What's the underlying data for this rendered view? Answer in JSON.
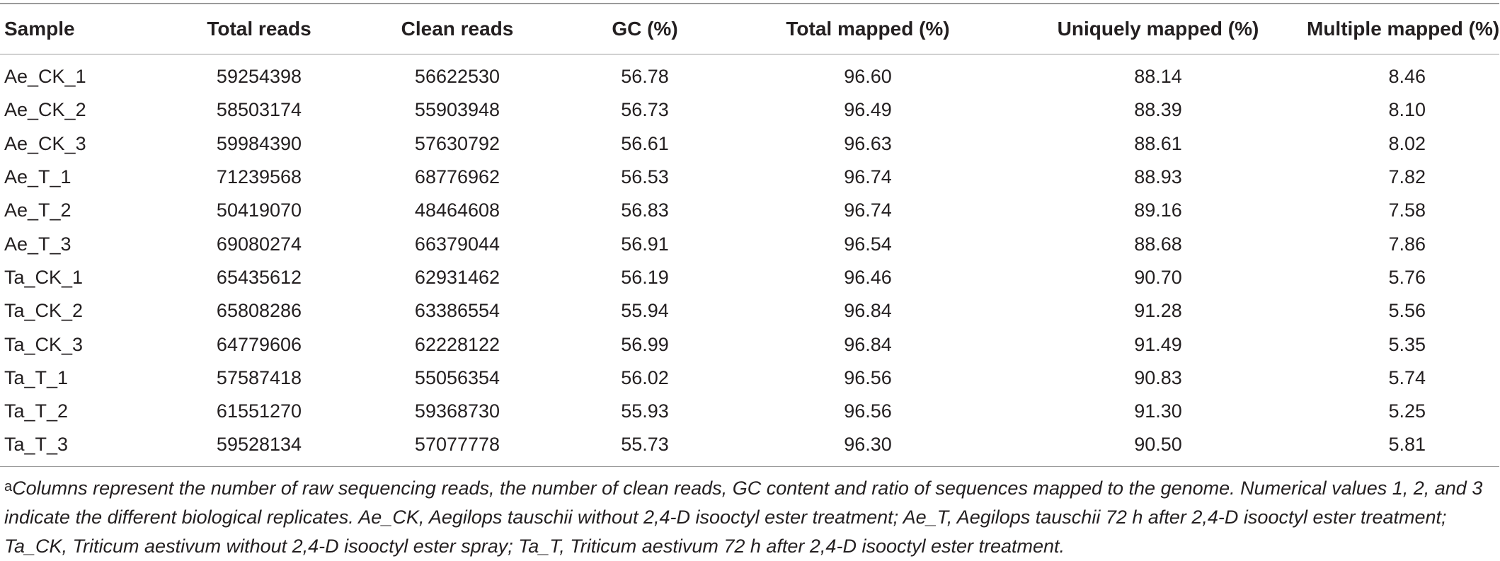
{
  "table": {
    "headers": [
      "Sample",
      "Total reads",
      "Clean reads",
      "GC (%)",
      "Total mapped (%)",
      "Uniquely mapped (%)",
      "Multiple mapped (%)"
    ],
    "rows": [
      [
        "Ae_CK_1",
        "59254398",
        "56622530",
        "56.78",
        "96.60",
        "88.14",
        "8.46"
      ],
      [
        "Ae_CK_2",
        "58503174",
        "55903948",
        "56.73",
        "96.49",
        "88.39",
        "8.10"
      ],
      [
        "Ae_CK_3",
        "59984390",
        "57630792",
        "56.61",
        "96.63",
        "88.61",
        "8.02"
      ],
      [
        "Ae_T_1",
        "71239568",
        "68776962",
        "56.53",
        "96.74",
        "88.93",
        "7.82"
      ],
      [
        "Ae_T_2",
        "50419070",
        "48464608",
        "56.83",
        "96.74",
        "89.16",
        "7.58"
      ],
      [
        "Ae_T_3",
        "69080274",
        "66379044",
        "56.91",
        "96.54",
        "88.68",
        "7.86"
      ],
      [
        "Ta_CK_1",
        "65435612",
        "62931462",
        "56.19",
        "96.46",
        "90.70",
        "5.76"
      ],
      [
        "Ta_CK_2",
        "65808286",
        "63386554",
        "55.94",
        "96.84",
        "91.28",
        "5.56"
      ],
      [
        "Ta_CK_3",
        "64779606",
        "62228122",
        "56.99",
        "96.84",
        "91.49",
        "5.35"
      ],
      [
        "Ta_T_1",
        "57587418",
        "55056354",
        "56.02",
        "96.56",
        "90.83",
        "5.74"
      ],
      [
        "Ta_T_2",
        "61551270",
        "59368730",
        "55.93",
        "96.56",
        "91.30",
        "5.25"
      ],
      [
        "Ta_T_3",
        "59528134",
        "57077778",
        "55.73",
        "96.30",
        "90.50",
        "5.81"
      ]
    ]
  },
  "footnote": {
    "marker": "a",
    "text": "Columns represent the number of raw sequencing reads, the number of clean reads, GC content and ratio of sequences mapped to the genome. Numerical values 1, 2, and 3 indicate the different biological replicates. Ae_CK, Aegilops tauschii without 2,4-D isooctyl ester treatment; Ae_T, Aegilops tauschii 72 h after 2,4-D isooctyl ester treatment; Ta_CK, Triticum aestivum without 2,4-D isooctyl ester spray; Ta_T, Triticum aestivum 72 h after 2,4-D isooctyl ester treatment."
  }
}
